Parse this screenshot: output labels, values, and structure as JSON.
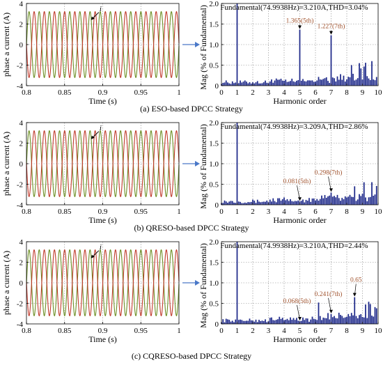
{
  "chart_data": [
    {
      "type": "line",
      "panel": "a",
      "xlabel": "Time (s)",
      "ylabel": "phase a current (A)",
      "xlim": [
        0.8,
        1.0
      ],
      "ylim": [
        -4,
        4
      ],
      "xticks": [
        "0.8",
        "0.85",
        "0.9",
        "0.95",
        "1"
      ],
      "yticks": [
        "4",
        "2",
        "0",
        "-2",
        "-4"
      ],
      "frequency_hz": 74.9938,
      "amplitude_a": 3.21,
      "series_label": "i",
      "grid": true
    },
    {
      "type": "bar",
      "panel": "a",
      "title": "Fundamental(74.9938Hz)=3.210A,THD=3.04%",
      "xlabel": "Harmonic order",
      "ylabel": "Mag (% of Fundamental)",
      "xlim": [
        0,
        10
      ],
      "ylim": [
        0,
        2.0
      ],
      "xticks": [
        "0",
        "1",
        "2",
        "3",
        "4",
        "5",
        "6",
        "7",
        "8",
        "9",
        "10"
      ],
      "yticks": [
        "2.0",
        "1.5",
        "1.0",
        "0.5",
        "0"
      ],
      "fundamental_value": 100,
      "annotations": [
        {
          "order": 5,
          "text": "1.365(5th)",
          "value": 1.365
        },
        {
          "order": 7,
          "text": "1.227(7th)",
          "value": 1.227
        }
      ]
    },
    {
      "type": "line",
      "panel": "b",
      "xlabel": "Time (s)",
      "ylabel": "phase a current (A)",
      "xlim": [
        0.8,
        1.0
      ],
      "ylim": [
        -4,
        4
      ],
      "xticks": [
        "0.8",
        "0.85",
        "0.9",
        "0.95",
        "1"
      ],
      "yticks": [
        "4",
        "2",
        "0",
        "-2",
        "-4"
      ],
      "frequency_hz": 74.9938,
      "amplitude_a": 3.209,
      "series_label": "i",
      "grid": true
    },
    {
      "type": "bar",
      "panel": "b",
      "title": "Fundamental(74.9938Hz)=3.209A,THD=2.86%",
      "xlabel": "Harmonic order",
      "ylabel": "Mag (% of Fundamental)",
      "xlim": [
        0,
        10
      ],
      "ylim": [
        0,
        2.0
      ],
      "xticks": [
        "0",
        "1",
        "2",
        "3",
        "4",
        "5",
        "6",
        "7",
        "8",
        "9",
        "10"
      ],
      "yticks": [
        "2.0",
        "1.5",
        "1.0",
        "0.5",
        "0"
      ],
      "fundamental_value": 100,
      "annotations": [
        {
          "order": 5,
          "text": "0.081(5th)",
          "value": 0.081
        },
        {
          "order": 7,
          "text": "0.298(7th)",
          "value": 0.298
        }
      ]
    },
    {
      "type": "line",
      "panel": "c",
      "xlabel": "Time (s)",
      "ylabel": "phase a current (A)",
      "xlim": [
        0.8,
        1.0
      ],
      "ylim": [
        -4,
        4
      ],
      "xticks": [
        "0.8",
        "0.85",
        "0.9",
        "0.95",
        "1"
      ],
      "yticks": [
        "4",
        "2",
        "0",
        "-2",
        "-4"
      ],
      "frequency_hz": 74.9938,
      "amplitude_a": 3.21,
      "series_label": "i",
      "grid": true
    },
    {
      "type": "bar",
      "panel": "c",
      "title": "Fundamental(74.9938Hz)=3.210A,THD=2.44%",
      "xlabel": "Harmonic order",
      "ylabel": "Mag (% of Fundamental)",
      "xlim": [
        0,
        10
      ],
      "ylim": [
        0,
        2.0
      ],
      "xticks": [
        "0",
        "1",
        "2",
        "3",
        "4",
        "5",
        "6",
        "7",
        "8",
        "9",
        "10"
      ],
      "yticks": [
        "2.0",
        "1.5",
        "1.0",
        "0.5",
        "0"
      ],
      "fundamental_value": 100,
      "annotations": [
        {
          "order": 5,
          "text": "0.068(5th)",
          "value": 0.068
        },
        {
          "order": 7,
          "text": "0.241(7th)",
          "value": 0.241
        },
        {
          "order": 8.5,
          "text": "0.65",
          "value": 0.65
        }
      ]
    }
  ],
  "captions": [
    "(a) ESO-based DPCC Strategy",
    "(b) QRESO-based DPCC Strategy",
    "(c) CQRESO-based DPCC Strategy"
  ],
  "colors": {
    "wave_a": "#c0392b",
    "wave_b": "#6b8e23",
    "bar": "#1f2a8a",
    "arrow": "#4a78c8"
  }
}
